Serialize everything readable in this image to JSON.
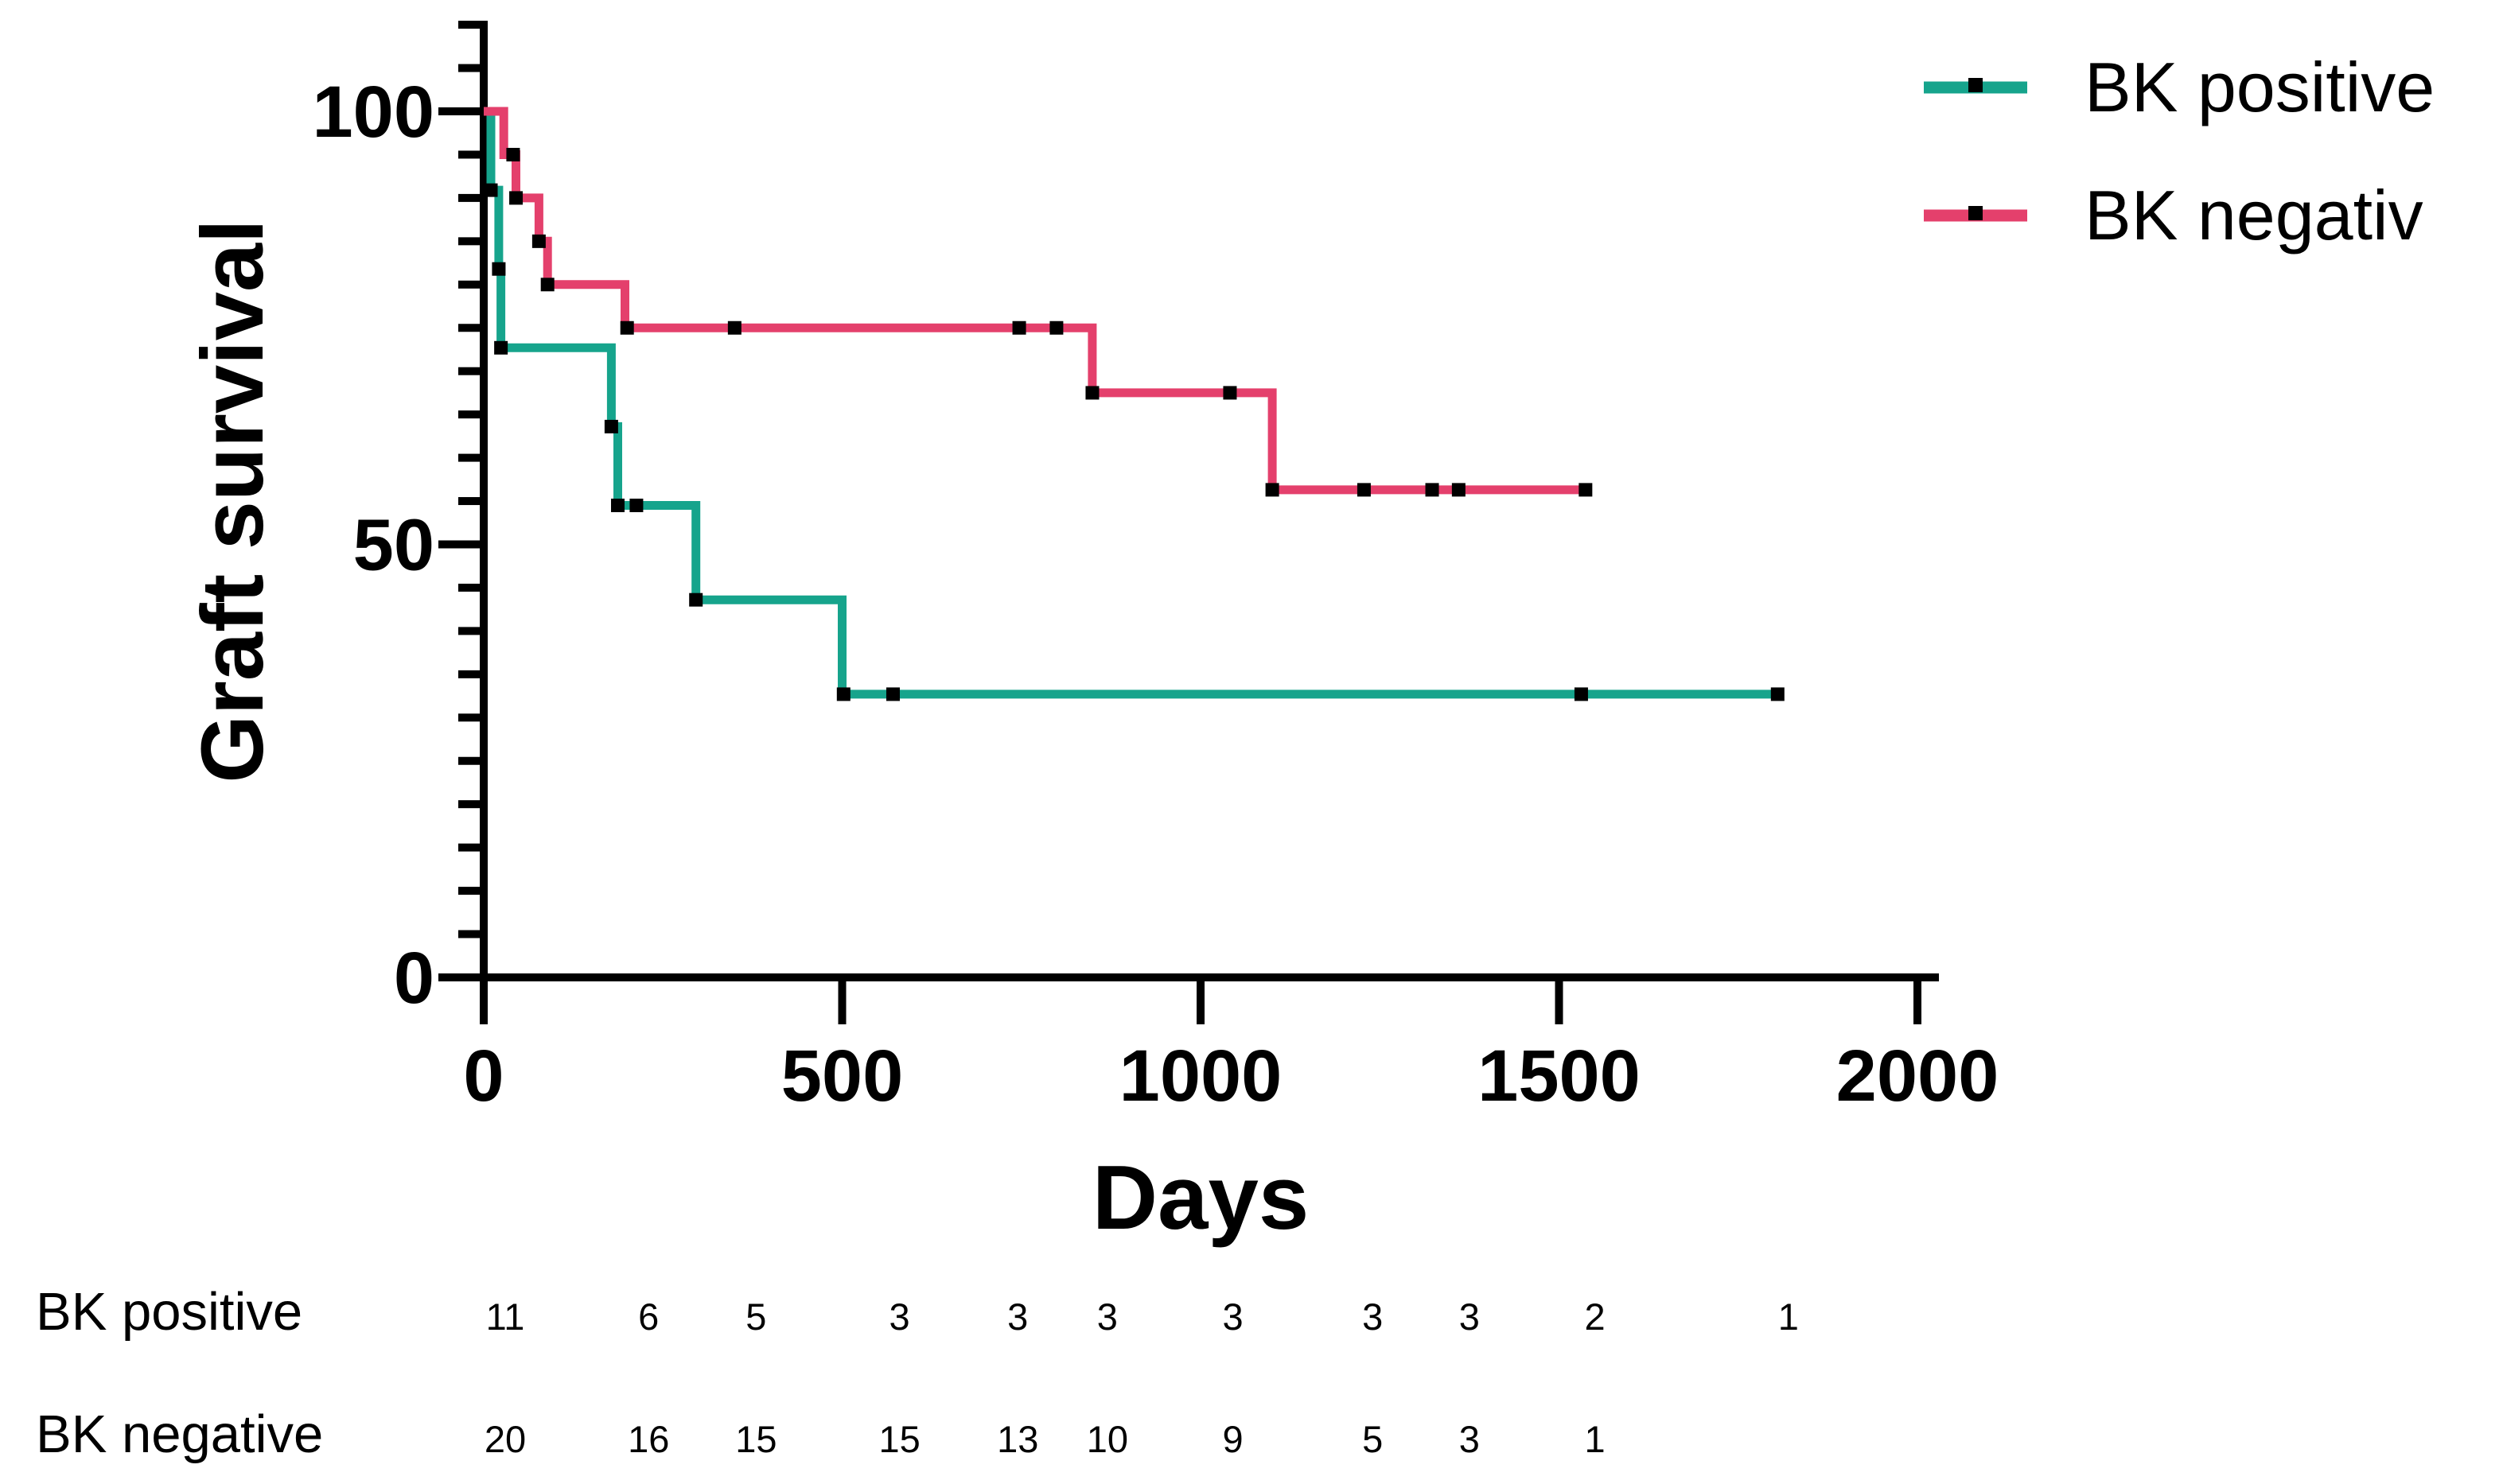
{
  "figure": {
    "background": "#ffffff",
    "axis_color": "#000000",
    "text_color": "#000000"
  },
  "chart_data": {
    "type": "line",
    "variant": "kaplan-meier-step",
    "title": "",
    "xlabel": "Days",
    "ylabel": "Graft survival",
    "xlim": [
      0,
      2000
    ],
    "ylim": [
      0,
      110
    ],
    "x_ticks": [
      0,
      500,
      1000,
      1500,
      2000
    ],
    "y_ticks_major": [
      0,
      50,
      100
    ],
    "y_minor_tick_step": 5,
    "y_axis_top": 110,
    "grid": false,
    "legend_position": "top-right",
    "series": [
      {
        "name": "BK positive",
        "color": "#16A48C",
        "steps": [
          [
            0,
            100
          ],
          [
            10,
            100
          ],
          [
            10,
            90.9
          ],
          [
            21,
            90.9
          ],
          [
            21,
            81.8
          ],
          [
            24,
            81.8
          ],
          [
            24,
            72.7
          ],
          [
            178,
            72.7
          ],
          [
            178,
            63.6
          ],
          [
            187,
            63.6
          ],
          [
            187,
            54.5
          ],
          [
            296,
            54.5
          ],
          [
            296,
            43.6
          ],
          [
            500,
            43.6
          ],
          [
            500,
            32.7
          ],
          [
            1810,
            32.7
          ]
        ],
        "censors": [
          [
            10,
            90.9
          ],
          [
            21,
            81.8
          ],
          [
            24,
            72.7
          ],
          [
            178,
            63.6
          ],
          [
            187,
            54.5
          ],
          [
            213,
            54.5
          ],
          [
            296,
            43.6
          ],
          [
            502,
            32.7
          ],
          [
            571,
            32.7
          ],
          [
            1531,
            32.7
          ],
          [
            1805,
            32.7
          ]
        ]
      },
      {
        "name": "BK negativ",
        "color": "#E4406C",
        "steps": [
          [
            0,
            100
          ],
          [
            28,
            100
          ],
          [
            28,
            95
          ],
          [
            45,
            95
          ],
          [
            45,
            90
          ],
          [
            77,
            90
          ],
          [
            77,
            85
          ],
          [
            89,
            85
          ],
          [
            89,
            80
          ],
          [
            197,
            80
          ],
          [
            197,
            75
          ],
          [
            849,
            75
          ],
          [
            849,
            67.5
          ],
          [
            1100,
            67.5
          ],
          [
            1100,
            56.3
          ],
          [
            1541,
            56.3
          ]
        ],
        "censors": [
          [
            41,
            95
          ],
          [
            45,
            90
          ],
          [
            77,
            85
          ],
          [
            89,
            80
          ],
          [
            200,
            75
          ],
          [
            350,
            75
          ],
          [
            747,
            75
          ],
          [
            799,
            75
          ],
          [
            849,
            67.5
          ],
          [
            1041,
            67.5
          ],
          [
            1100,
            56.3
          ],
          [
            1228,
            56.3
          ],
          [
            1323,
            56.3
          ],
          [
            1360,
            56.3
          ],
          [
            1537,
            56.3
          ]
        ]
      }
    ],
    "risk_table": {
      "time_points": [
        30,
        230,
        380,
        580,
        745,
        870,
        1045,
        1240,
        1375,
        1550,
        1820
      ],
      "rows": [
        {
          "label": "BK positive",
          "counts": [
            11,
            6,
            5,
            3,
            3,
            3,
            3,
            3,
            3,
            2,
            1
          ]
        },
        {
          "label": "BK negative",
          "counts": [
            20,
            16,
            15,
            15,
            13,
            10,
            9,
            5,
            3,
            1
          ]
        }
      ]
    }
  }
}
